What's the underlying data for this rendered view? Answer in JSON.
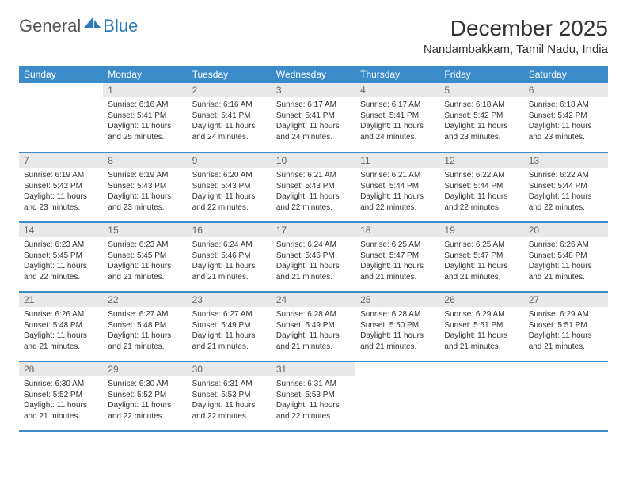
{
  "logo": {
    "part1": "General",
    "part2": "Blue"
  },
  "title": "December 2025",
  "location": "Nandambakkam, Tamil Nadu, India",
  "colors": {
    "header_bg": "#3b8bc9",
    "header_text": "#ffffff",
    "daynum_bg": "#e8e8e8",
    "daynum_text": "#666666",
    "border": "#3b8bc9",
    "logo_blue": "#2b7bbd"
  },
  "weekdays": [
    "Sunday",
    "Monday",
    "Tuesday",
    "Wednesday",
    "Thursday",
    "Friday",
    "Saturday"
  ],
  "weeks": [
    [
      null,
      {
        "n": "1",
        "sr": "6:16 AM",
        "ss": "5:41 PM",
        "dl": "11 hours and 25 minutes."
      },
      {
        "n": "2",
        "sr": "6:16 AM",
        "ss": "5:41 PM",
        "dl": "11 hours and 24 minutes."
      },
      {
        "n": "3",
        "sr": "6:17 AM",
        "ss": "5:41 PM",
        "dl": "11 hours and 24 minutes."
      },
      {
        "n": "4",
        "sr": "6:17 AM",
        "ss": "5:41 PM",
        "dl": "11 hours and 24 minutes."
      },
      {
        "n": "5",
        "sr": "6:18 AM",
        "ss": "5:42 PM",
        "dl": "11 hours and 23 minutes."
      },
      {
        "n": "6",
        "sr": "6:18 AM",
        "ss": "5:42 PM",
        "dl": "11 hours and 23 minutes."
      }
    ],
    [
      {
        "n": "7",
        "sr": "6:19 AM",
        "ss": "5:42 PM",
        "dl": "11 hours and 23 minutes."
      },
      {
        "n": "8",
        "sr": "6:19 AM",
        "ss": "5:43 PM",
        "dl": "11 hours and 23 minutes."
      },
      {
        "n": "9",
        "sr": "6:20 AM",
        "ss": "5:43 PM",
        "dl": "11 hours and 22 minutes."
      },
      {
        "n": "10",
        "sr": "6:21 AM",
        "ss": "5:43 PM",
        "dl": "11 hours and 22 minutes."
      },
      {
        "n": "11",
        "sr": "6:21 AM",
        "ss": "5:44 PM",
        "dl": "11 hours and 22 minutes."
      },
      {
        "n": "12",
        "sr": "6:22 AM",
        "ss": "5:44 PM",
        "dl": "11 hours and 22 minutes."
      },
      {
        "n": "13",
        "sr": "6:22 AM",
        "ss": "5:44 PM",
        "dl": "11 hours and 22 minutes."
      }
    ],
    [
      {
        "n": "14",
        "sr": "6:23 AM",
        "ss": "5:45 PM",
        "dl": "11 hours and 22 minutes."
      },
      {
        "n": "15",
        "sr": "6:23 AM",
        "ss": "5:45 PM",
        "dl": "11 hours and 21 minutes."
      },
      {
        "n": "16",
        "sr": "6:24 AM",
        "ss": "5:46 PM",
        "dl": "11 hours and 21 minutes."
      },
      {
        "n": "17",
        "sr": "6:24 AM",
        "ss": "5:46 PM",
        "dl": "11 hours and 21 minutes."
      },
      {
        "n": "18",
        "sr": "6:25 AM",
        "ss": "5:47 PM",
        "dl": "11 hours and 21 minutes."
      },
      {
        "n": "19",
        "sr": "6:25 AM",
        "ss": "5:47 PM",
        "dl": "11 hours and 21 minutes."
      },
      {
        "n": "20",
        "sr": "6:26 AM",
        "ss": "5:48 PM",
        "dl": "11 hours and 21 minutes."
      }
    ],
    [
      {
        "n": "21",
        "sr": "6:26 AM",
        "ss": "5:48 PM",
        "dl": "11 hours and 21 minutes."
      },
      {
        "n": "22",
        "sr": "6:27 AM",
        "ss": "5:48 PM",
        "dl": "11 hours and 21 minutes."
      },
      {
        "n": "23",
        "sr": "6:27 AM",
        "ss": "5:49 PM",
        "dl": "11 hours and 21 minutes."
      },
      {
        "n": "24",
        "sr": "6:28 AM",
        "ss": "5:49 PM",
        "dl": "11 hours and 21 minutes."
      },
      {
        "n": "25",
        "sr": "6:28 AM",
        "ss": "5:50 PM",
        "dl": "11 hours and 21 minutes."
      },
      {
        "n": "26",
        "sr": "6:29 AM",
        "ss": "5:51 PM",
        "dl": "11 hours and 21 minutes."
      },
      {
        "n": "27",
        "sr": "6:29 AM",
        "ss": "5:51 PM",
        "dl": "11 hours and 21 minutes."
      }
    ],
    [
      {
        "n": "28",
        "sr": "6:30 AM",
        "ss": "5:52 PM",
        "dl": "11 hours and 21 minutes."
      },
      {
        "n": "29",
        "sr": "6:30 AM",
        "ss": "5:52 PM",
        "dl": "11 hours and 22 minutes."
      },
      {
        "n": "30",
        "sr": "6:31 AM",
        "ss": "5:53 PM",
        "dl": "11 hours and 22 minutes."
      },
      {
        "n": "31",
        "sr": "6:31 AM",
        "ss": "5:53 PM",
        "dl": "11 hours and 22 minutes."
      },
      null,
      null,
      null
    ]
  ],
  "labels": {
    "sunrise": "Sunrise:",
    "sunset": "Sunset:",
    "daylight": "Daylight:"
  }
}
